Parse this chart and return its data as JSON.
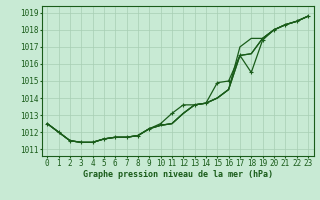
{
  "xlabel": "Graphe pression niveau de la mer (hPa)",
  "background_color": "#c8ead4",
  "grid_color": "#a8ceb4",
  "line_color": "#1a5c1a",
  "yticks": [
    1011,
    1012,
    1013,
    1014,
    1015,
    1016,
    1017,
    1018,
    1019
  ],
  "ylim": [
    1010.6,
    1019.4
  ],
  "xlim": [
    -0.5,
    23.5
  ],
  "series": [
    {
      "y": [
        1012.5,
        1012.0,
        1011.5,
        1011.4,
        1011.4,
        1011.6,
        1011.7,
        1011.7,
        1011.8,
        1012.2,
        1012.4,
        1012.5,
        1013.1,
        1013.6,
        1013.7,
        1014.0,
        1014.5,
        1016.5,
        1016.6,
        1017.5,
        1018.0,
        1018.3,
        1018.5,
        1018.8
      ],
      "marker": false,
      "lw": 0.9
    },
    {
      "y": [
        1012.5,
        1012.0,
        1011.5,
        1011.4,
        1011.4,
        1011.6,
        1011.7,
        1011.7,
        1011.8,
        1012.2,
        1012.4,
        1012.5,
        1013.1,
        1013.6,
        1013.7,
        1014.0,
        1014.5,
        1016.5,
        1016.6,
        1017.5,
        1018.0,
        1018.3,
        1018.5,
        1018.8
      ],
      "marker": false,
      "lw": 0.9
    },
    {
      "y": [
        1012.5,
        1012.0,
        1011.5,
        1011.4,
        1011.4,
        1011.6,
        1011.7,
        1011.7,
        1011.8,
        1012.2,
        1012.4,
        1012.5,
        1013.1,
        1013.6,
        1013.7,
        1014.0,
        1014.5,
        1017.0,
        1017.5,
        1017.5,
        1018.0,
        1018.3,
        1018.5,
        1018.8
      ],
      "marker": false,
      "lw": 0.9
    },
    {
      "y": [
        1012.5,
        1012.0,
        1011.5,
        1011.4,
        1011.4,
        1011.6,
        1011.7,
        1011.7,
        1011.8,
        1012.2,
        1012.5,
        1013.1,
        1013.6,
        1013.6,
        1013.7,
        1014.9,
        1015.0,
        1016.5,
        1015.5,
        1017.4,
        1018.0,
        1018.3,
        1018.5,
        1018.8
      ],
      "marker": true,
      "lw": 0.9
    }
  ],
  "label_fontsize": 5.5,
  "xlabel_fontsize": 6.0
}
